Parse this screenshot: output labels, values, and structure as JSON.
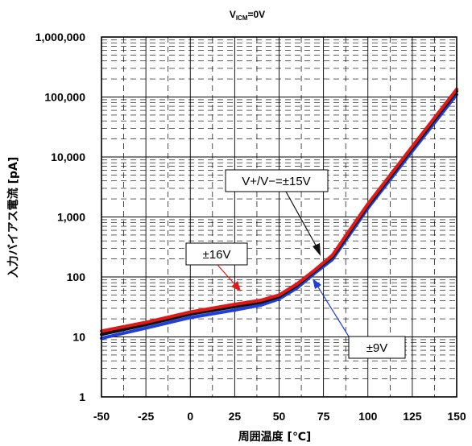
{
  "chart_data": {
    "type": "line",
    "title_main": "V",
    "title_sub": "ICM",
    "title_tail": "=0V",
    "xlabel": "周囲温度 [℃]",
    "ylabel": "入力バイアス電流 [pA]",
    "xlim": [
      -50,
      150
    ],
    "ylim": [
      1,
      1000000
    ],
    "y_scale": "log",
    "grid": true,
    "x_ticks": [
      -50,
      -25,
      0,
      25,
      50,
      75,
      100,
      125,
      150
    ],
    "x_tick_labels": [
      "-50",
      "-25",
      "0",
      "25",
      "50",
      "75",
      "100",
      "125",
      "150"
    ],
    "y_ticks": [
      1,
      10,
      100,
      1000,
      10000,
      100000,
      1000000
    ],
    "y_tick_labels": [
      "1",
      "10",
      "100",
      "1,000",
      "10,000",
      "100,000",
      "1,000,000"
    ],
    "series": [
      {
        "name": "±9V",
        "color": "#1f3fd8",
        "x": [
          -50,
          -25,
          0,
          25,
          40,
          50,
          60,
          70,
          80,
          90,
          100,
          125,
          150
        ],
        "y": [
          9.5,
          14,
          21,
          28,
          34,
          43,
          65,
          115,
          195,
          520,
          1400,
          12500,
          110000
        ]
      },
      {
        "name": "±15V",
        "color": "#111111",
        "x": [
          -50,
          -25,
          0,
          25,
          40,
          50,
          60,
          70,
          80,
          90,
          100,
          125,
          150
        ],
        "y": [
          11,
          16,
          24,
          32,
          38,
          47,
          72,
          125,
          215,
          580,
          1550,
          14000,
          125000
        ]
      },
      {
        "name": "±16V",
        "color": "#e01818",
        "x": [
          -50,
          -25,
          0,
          25,
          40,
          50,
          60,
          70,
          80,
          90,
          100,
          125,
          150
        ],
        "y": [
          12.5,
          17.5,
          26,
          35,
          41,
          50,
          76,
          130,
          230,
          620,
          1650,
          15000,
          135000
        ]
      }
    ],
    "annotations": [
      {
        "label": "V+/V−=±15V",
        "color": "#111111"
      },
      {
        "label": "±16V",
        "color": "#e01818"
      },
      {
        "label": "±9V",
        "color": "#1f3fd8"
      }
    ]
  }
}
